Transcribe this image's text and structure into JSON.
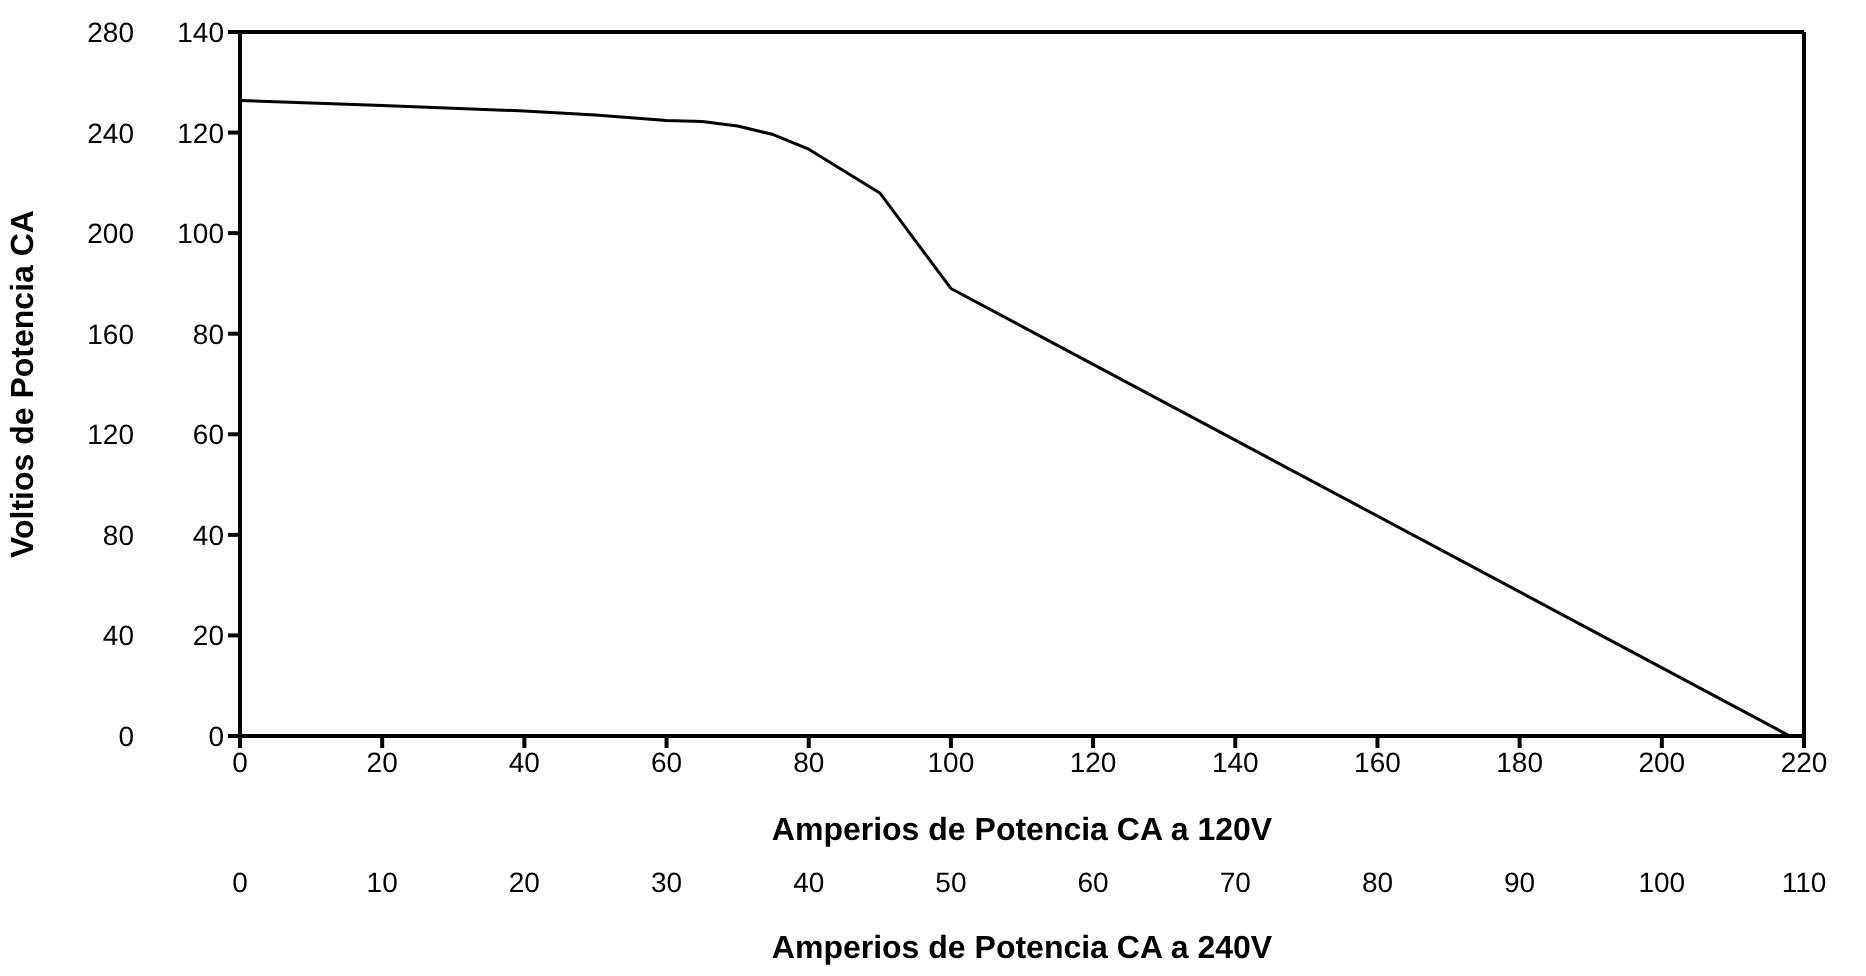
{
  "chart_data": {
    "type": "line",
    "xlabel": "Amperios de Potencia CA a 120V",
    "x2label": "Amperios de Potencia CA a 240V",
    "ylabel": "Voltios de Potencia CA",
    "xlim": [
      0,
      220
    ],
    "xticks": [
      0,
      20,
      40,
      60,
      80,
      100,
      120,
      140,
      160,
      180,
      200,
      220
    ],
    "x2lim": [
      0,
      110
    ],
    "x2ticks": [
      0,
      10,
      20,
      30,
      40,
      50,
      60,
      70,
      80,
      90,
      100,
      110
    ],
    "ylim": [
      0,
      280
    ],
    "yticks": [
      0,
      40,
      80,
      120,
      160,
      200,
      240,
      280
    ],
    "y2lim": [
      0,
      140
    ],
    "y2ticks": [
      0,
      20,
      40,
      60,
      80,
      100,
      120,
      140
    ],
    "series": [
      {
        "color": "#000000",
        "axis": "y2",
        "x": [
          0,
          20,
          40,
          50,
          60,
          65,
          70,
          75,
          80,
          90,
          100,
          218
        ],
        "values": [
          126.4,
          125.4,
          124.3,
          123.5,
          122.4,
          122.2,
          121.3,
          119.6,
          116.7,
          108,
          89,
          0
        ]
      }
    ],
    "marker": "none",
    "line_style": "solid"
  }
}
